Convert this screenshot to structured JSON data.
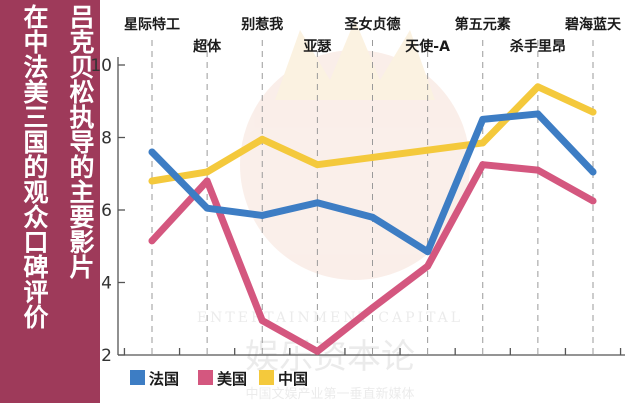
{
  "chart_data": {
    "type": "line",
    "title": "吕克贝松执导的主要影片在中法美三国的观众口碑评价",
    "title_lines": [
      "吕克贝松执导的主要影片",
      "在中法美三国的观众口碑评价"
    ],
    "categories": [
      "星际特工",
      "超体",
      "别惹我",
      "亚瑟",
      "圣女贞德",
      "天使-A",
      "第五元素",
      "杀手里昂",
      "碧海蓝天"
    ],
    "ylim": [
      2,
      10
    ],
    "yticks": [
      2,
      4,
      6,
      8,
      10
    ],
    "series": [
      {
        "name": "法国",
        "color": "#3d7dc4",
        "values": [
          7.6,
          6.05,
          5.85,
          6.2,
          5.8,
          4.85,
          8.5,
          8.65,
          7.05
        ]
      },
      {
        "name": "美国",
        "color": "#d4577f",
        "values": [
          5.15,
          6.8,
          2.95,
          2.1,
          3.3,
          4.45,
          7.25,
          7.1,
          6.25
        ]
      },
      {
        "name": "中国",
        "color": "#f4c93c",
        "values": [
          6.8,
          7.05,
          7.95,
          7.25,
          7.45,
          7.65,
          7.85,
          9.4,
          8.7
        ]
      }
    ],
    "grid": true,
    "legend": "bottom-left"
  },
  "watermark": {
    "en": "ENTERTAINMENT CAPITAL",
    "cn": "娱乐资本论",
    "sub": "中国文娱产业第一垂直新媒体"
  }
}
